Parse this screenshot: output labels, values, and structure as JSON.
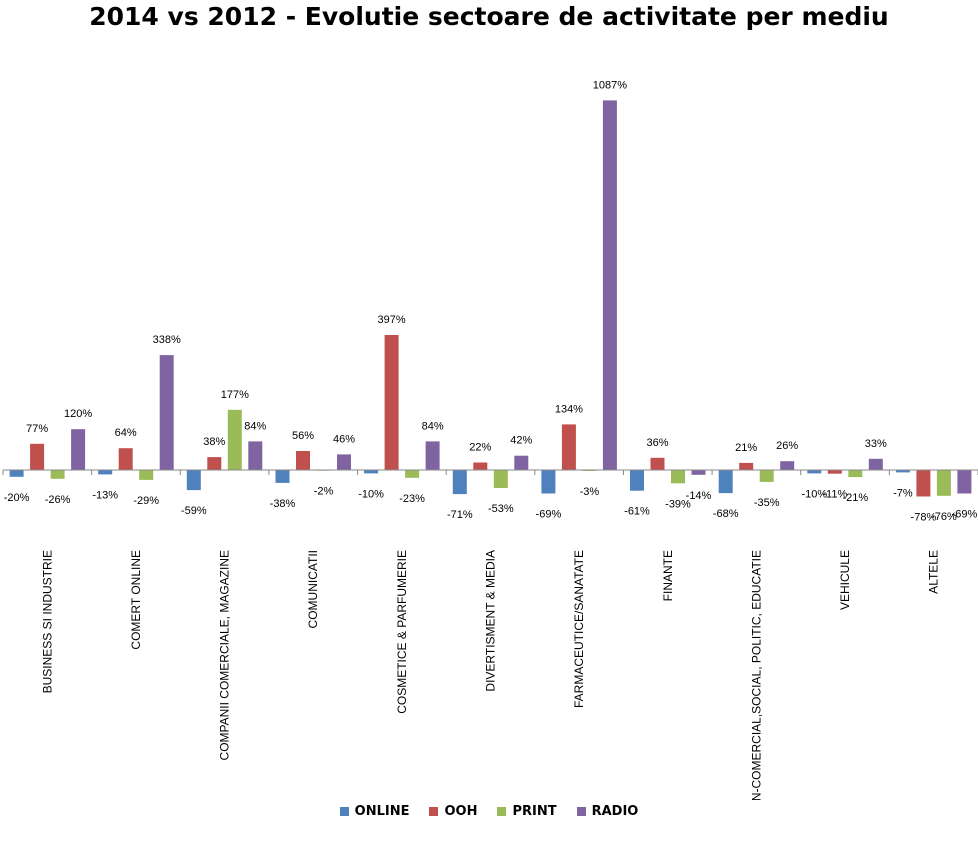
{
  "chart_data": {
    "type": "bar",
    "title": "2014 vs 2012 - Evolutie sectoare de activitate per mediu",
    "xlabel": "",
    "ylabel": "",
    "value_suffix": "%",
    "categories": [
      "BUSINESS SI INDUSTRIE",
      "COMERT ONLINE",
      "COMPANII COMERCIALE, MAGAZINE",
      "COMUNICATII",
      "COSMETICE & PARFUMERIE",
      "DIVERTISMENT & MEDIA",
      "FARMACEUTICE/SANATATE",
      "FINANTE",
      "NON-COMERCIAL,SOCIAL, POLITIC, EDUCATIE",
      "VEHICULE",
      "ALTELE"
    ],
    "series": [
      {
        "name": "ONLINE",
        "color": "#4f81bd",
        "values": [
          -20,
          -13,
          -59,
          -38,
          -10,
          -71,
          -69,
          -61,
          -68,
          -10,
          -7
        ]
      },
      {
        "name": "OOH",
        "color": "#c0504d",
        "values": [
          77,
          64,
          38,
          56,
          397,
          22,
          134,
          36,
          21,
          -11,
          -78
        ]
      },
      {
        "name": "PRINT",
        "color": "#9bbb59",
        "values": [
          -26,
          -29,
          177,
          -2,
          -23,
          -53,
          -3,
          -39,
          -35,
          -21,
          -76
        ]
      },
      {
        "name": "RADIO",
        "color": "#8064a2",
        "values": [
          120,
          338,
          84,
          46,
          84,
          42,
          1087,
          -14,
          26,
          33,
          -69
        ]
      }
    ],
    "legend_position": "bottom",
    "grid": false
  }
}
